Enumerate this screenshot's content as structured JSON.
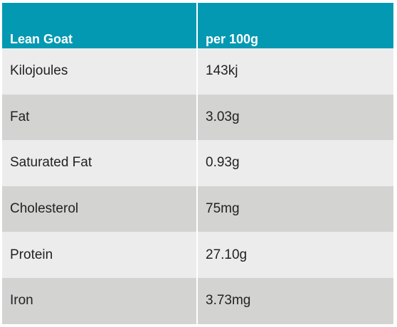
{
  "table": {
    "headers": [
      "Lean Goat",
      "per 100g"
    ],
    "rows": [
      [
        "Kilojoules",
        "143kj"
      ],
      [
        "Fat",
        "3.03g"
      ],
      [
        "Saturated Fat",
        "0.93g"
      ],
      [
        "Cholesterol",
        "75mg"
      ],
      [
        "Protein",
        "27.10g"
      ],
      [
        "Iron",
        "3.73mg"
      ]
    ]
  },
  "colors": {
    "header_bg": "#0399b2",
    "header_text": "#ffffff",
    "row_light": "#ececec",
    "row_dark": "#d3d3d2"
  }
}
